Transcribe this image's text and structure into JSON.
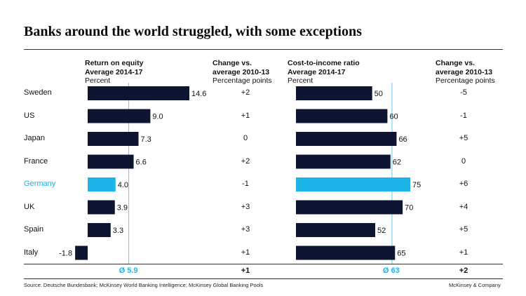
{
  "title": "Banks around the world struggled, with some exceptions",
  "colors": {
    "bar": "#0d1530",
    "highlight": "#1eb4ea",
    "avg_line": "#6fc7ea",
    "text": "#111111"
  },
  "roe_header": {
    "line1": "Return on equity",
    "line2": "Average 2014-17",
    "line3": "Percent"
  },
  "roe_change_header": {
    "line1": "Change vs.",
    "line2": "average 2010-13",
    "line3": "Percentage points"
  },
  "cti_header": {
    "line1": "Cost-to-income ratio",
    "line2": "Average 2014-17",
    "line3": "Percent"
  },
  "cti_change_header": {
    "line1": "Change vs.",
    "line2": "average 2010-13",
    "line3": "Percentage points"
  },
  "countries": [
    "Sweden",
    "US",
    "Japan",
    "France",
    "Germany",
    "UK",
    "Spain",
    "Italy"
  ],
  "highlight_country": "Germany",
  "roe_change": [
    "+2",
    "+1",
    "0",
    "+2",
    "-1",
    "+3",
    "+3",
    "+1"
  ],
  "roe_change_total": "+1",
  "cti_change": [
    "-5",
    "-1",
    "+5",
    "0",
    "+6",
    "+4",
    "+5",
    "+1"
  ],
  "cti_change_total": "+2",
  "roe_avg_label": "Ø 5.9",
  "cti_avg_label": "Ø 63",
  "source": "Source: Deutsche Bundesbank; McKinsey World Banking Intelligence; McKinsey Global Banking Pools",
  "company": "McKinsey & Company",
  "chart_data": [
    {
      "type": "bar",
      "orientation": "horizontal",
      "title": "Return on equity",
      "subtitle": "Average 2014-17",
      "unit": "Percent",
      "categories": [
        "Sweden",
        "US",
        "Japan",
        "France",
        "Germany",
        "UK",
        "Spain",
        "Italy"
      ],
      "values": [
        14.6,
        9.0,
        7.3,
        6.6,
        4.0,
        3.9,
        3.3,
        -1.8
      ],
      "labels": [
        "14.6",
        "9.0",
        "7.3",
        "6.6",
        "4.0",
        "3.9",
        "3.3",
        "-1.8"
      ],
      "average": 5.9,
      "xlim": [
        -2,
        15
      ]
    },
    {
      "type": "bar",
      "orientation": "horizontal",
      "title": "Cost-to-income ratio",
      "subtitle": "Average 2014-17",
      "unit": "Percent",
      "categories": [
        "Sweden",
        "US",
        "Japan",
        "France",
        "Germany",
        "UK",
        "Spain",
        "Italy"
      ],
      "values": [
        50,
        60,
        66,
        62,
        75,
        70,
        52,
        65
      ],
      "labels": [
        "50",
        "60",
        "66",
        "62",
        "75",
        "70",
        "52",
        "65"
      ],
      "average": 63,
      "xlim": [
        0,
        75
      ]
    }
  ]
}
